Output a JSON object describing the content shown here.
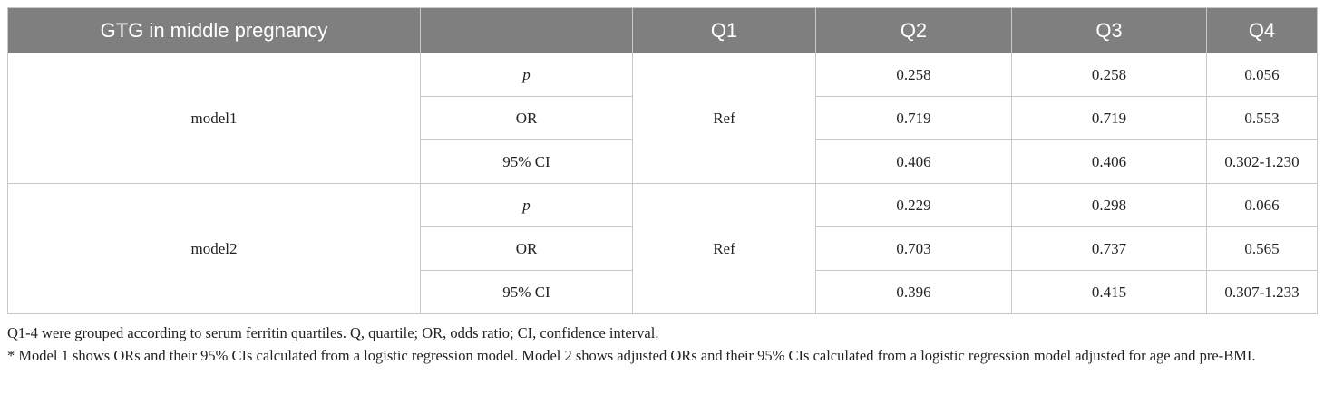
{
  "table": {
    "header": [
      "GTG in middle pregnancy",
      "Q1",
      "Q2",
      "Q3",
      "Q4"
    ],
    "groups": [
      {
        "model": "model1",
        "q1": "Ref",
        "rows": [
          {
            "stat": "p",
            "values": [
              "0.258",
              "0.258",
              "0.056"
            ]
          },
          {
            "stat": "OR",
            "values": [
              "0.719",
              "0.719",
              "0.553"
            ]
          },
          {
            "stat": "95% CI",
            "values": [
              "0.406",
              "0.406",
              "0.302-1.230"
            ]
          }
        ]
      },
      {
        "model": "model2",
        "q1": "Ref",
        "rows": [
          {
            "stat": "p",
            "values": [
              "0.229",
              "0.298",
              "0.066"
            ]
          },
          {
            "stat": "OR",
            "values": [
              "0.703",
              "0.737",
              "0.565"
            ]
          },
          {
            "stat": "95% CI",
            "values": [
              "0.396",
              "0.415",
              "0.307-1.233"
            ]
          }
        ]
      }
    ]
  },
  "footnotes": [
    "Q1-4 were grouped according to serum ferritin quartiles. Q, quartile; OR, odds ratio; CI, confidence interval.",
    "* Model 1 shows ORs and their 95% CIs calculated from a logistic regression model. Model 2 shows adjusted ORs and their 95% CIs calculated from a logistic regression model adjusted for age and pre-BMI."
  ]
}
